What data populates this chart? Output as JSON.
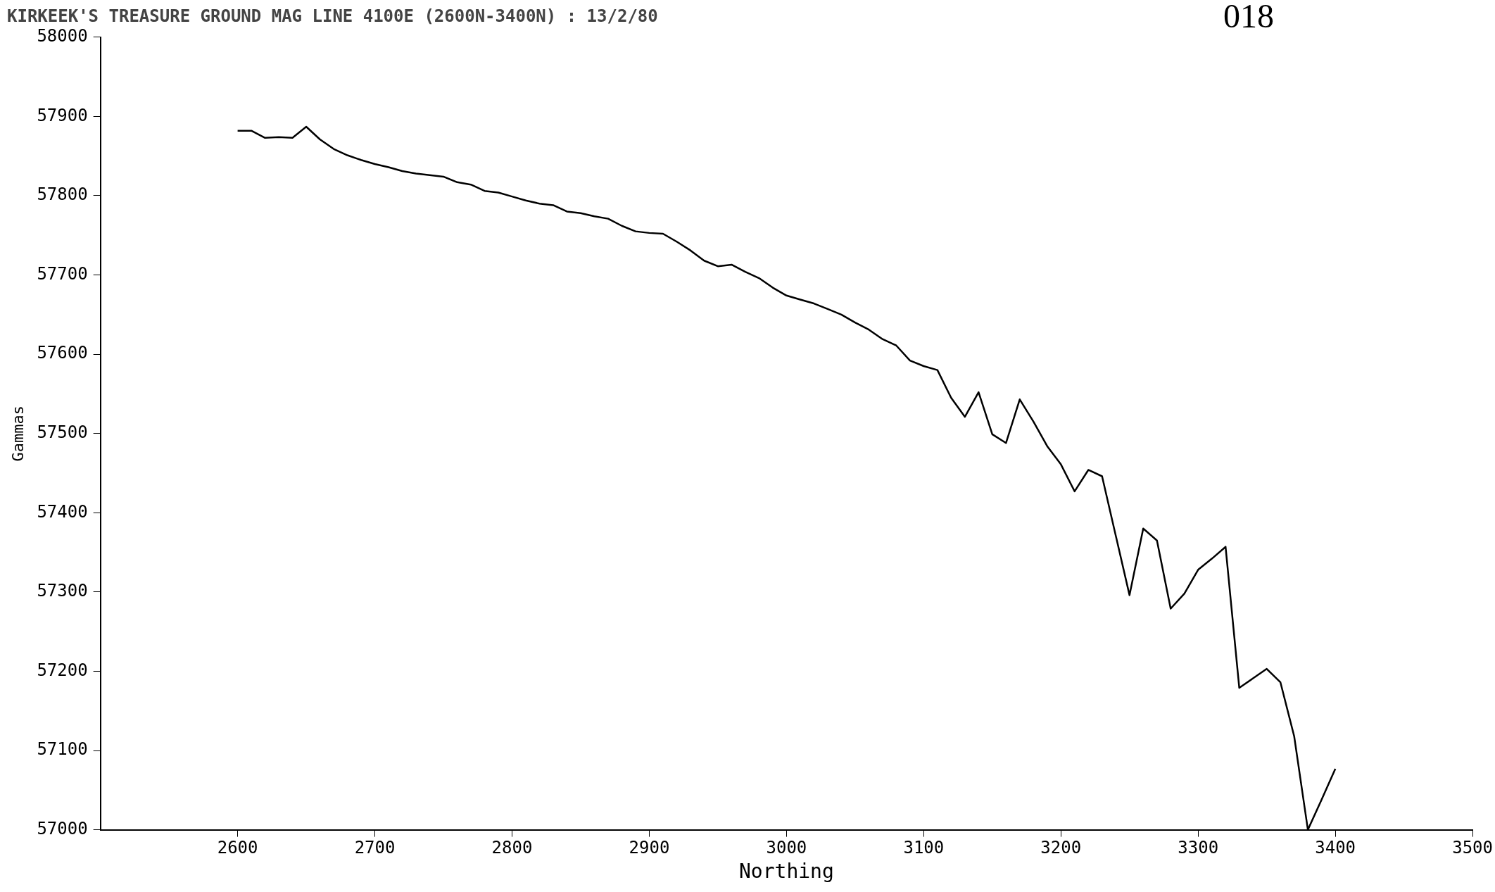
{
  "chart_data": {
    "type": "line",
    "title": "KIRKEEK'S TREASURE GROUND MAG LINE 4100E (2600N-3400N) : 13/2/80",
    "xlabel": "Northing",
    "ylabel": "Gammas",
    "annotations": [
      "018"
    ],
    "x": [
      2600,
      2610,
      2620,
      2630,
      2640,
      2650,
      2660,
      2670,
      2680,
      2690,
      2700,
      2710,
      2720,
      2730,
      2740,
      2750,
      2760,
      2770,
      2780,
      2790,
      2800,
      2810,
      2820,
      2830,
      2840,
      2850,
      2860,
      2870,
      2880,
      2890,
      2900,
      2910,
      2920,
      2930,
      2940,
      2950,
      2960,
      2970,
      2980,
      2990,
      3000,
      3010,
      3020,
      3030,
      3040,
      3050,
      3060,
      3070,
      3080,
      3090,
      3100,
      3110,
      3120,
      3130,
      3140,
      3150,
      3160,
      3170,
      3180,
      3190,
      3200,
      3210,
      3220,
      3230,
      3240,
      3250,
      3260,
      3270,
      3280,
      3290,
      3300,
      3310,
      3320,
      3330,
      3340,
      3350,
      3360,
      3370,
      3380,
      3390,
      3400
    ],
    "series": [
      {
        "color": "#000000",
        "values": [
          57882,
          57882,
          57873,
          57874,
          57873,
          57887,
          57871,
          57859,
          57851,
          57845,
          57840,
          57836,
          57831,
          57828,
          57826,
          57824,
          57817,
          57814,
          57806,
          57804,
          57799,
          57794,
          57790,
          57788,
          57780,
          57778,
          57774,
          57771,
          57762,
          57755,
          57753,
          57752,
          57742,
          57731,
          57718,
          57711,
          57713,
          57704,
          57696,
          57684,
          57674,
          57669,
          57664,
          57657,
          57650,
          57640,
          57631,
          57619,
          57611,
          57592,
          57585,
          57580,
          57545,
          57521,
          57552,
          57499,
          57488,
          57543,
          57515,
          57484,
          57461,
          57427,
          57454,
          57446,
          57371,
          57296,
          57380,
          57365,
          57279,
          57298,
          57328,
          57342,
          57357,
          57179,
          57191,
          57203,
          57186,
          57118,
          57000,
          57038,
          57077
        ]
      }
    ],
    "xlim": [
      2500,
      3500
    ],
    "xticks": [
      2600,
      2700,
      2800,
      2900,
      3000,
      3100,
      3200,
      3300,
      3400,
      3500
    ],
    "ylim": [
      57000,
      58000
    ],
    "yticks": [
      57000,
      57100,
      57200,
      57300,
      57400,
      57500,
      57600,
      57700,
      57800,
      57900,
      58000
    ],
    "grid": false,
    "legend": false,
    "marker": "none",
    "line_style": "solid"
  }
}
